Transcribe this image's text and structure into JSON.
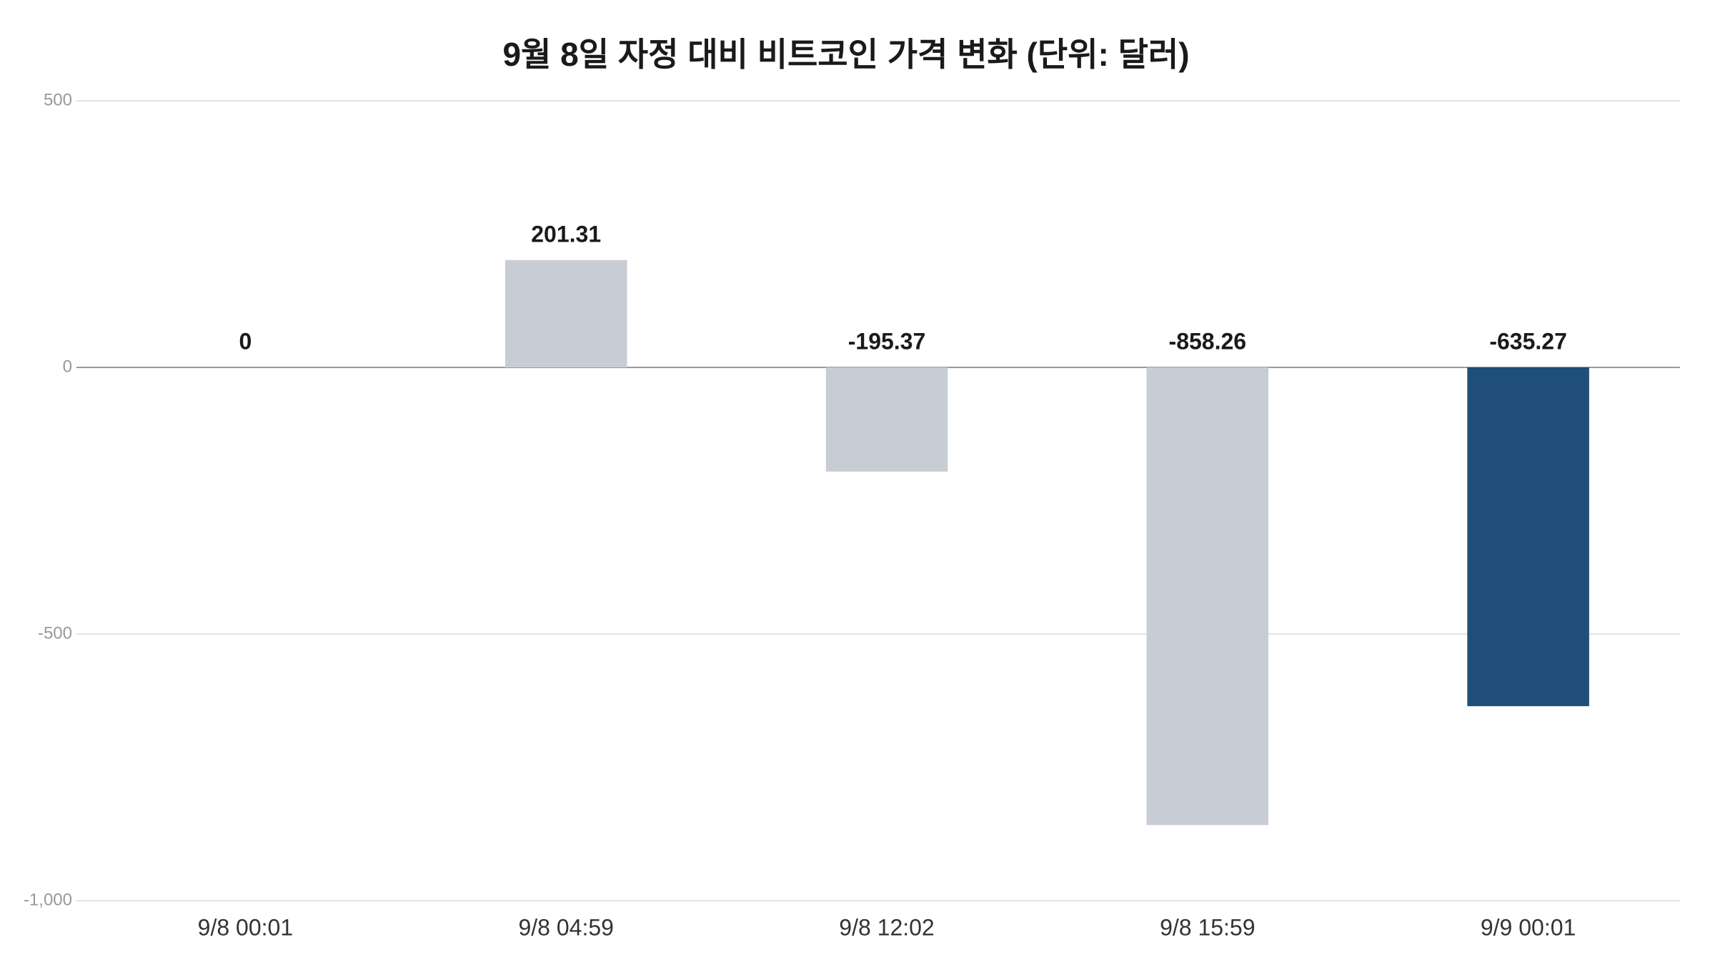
{
  "chart_data": {
    "type": "bar",
    "title": "9월 8일 자정 대비 비트코인 가격 변화 (단위: 달러)",
    "categories": [
      "9/8 00:01",
      "9/8 04:59",
      "9/8 12:02",
      "9/8 15:59",
      "9/9 00:01"
    ],
    "values": [
      0,
      201.31,
      -195.37,
      -858.26,
      -635.27
    ],
    "colors": [
      "#c8cdd5",
      "#c8cdd5",
      "#c8cdd5",
      "#c8cdd5",
      "#1f4e79"
    ],
    "ylim": [
      -1000,
      500
    ],
    "yticks": [
      {
        "value": -1000,
        "label": "-1,000"
      },
      -500,
      0,
      500
    ],
    "grid": true
  }
}
